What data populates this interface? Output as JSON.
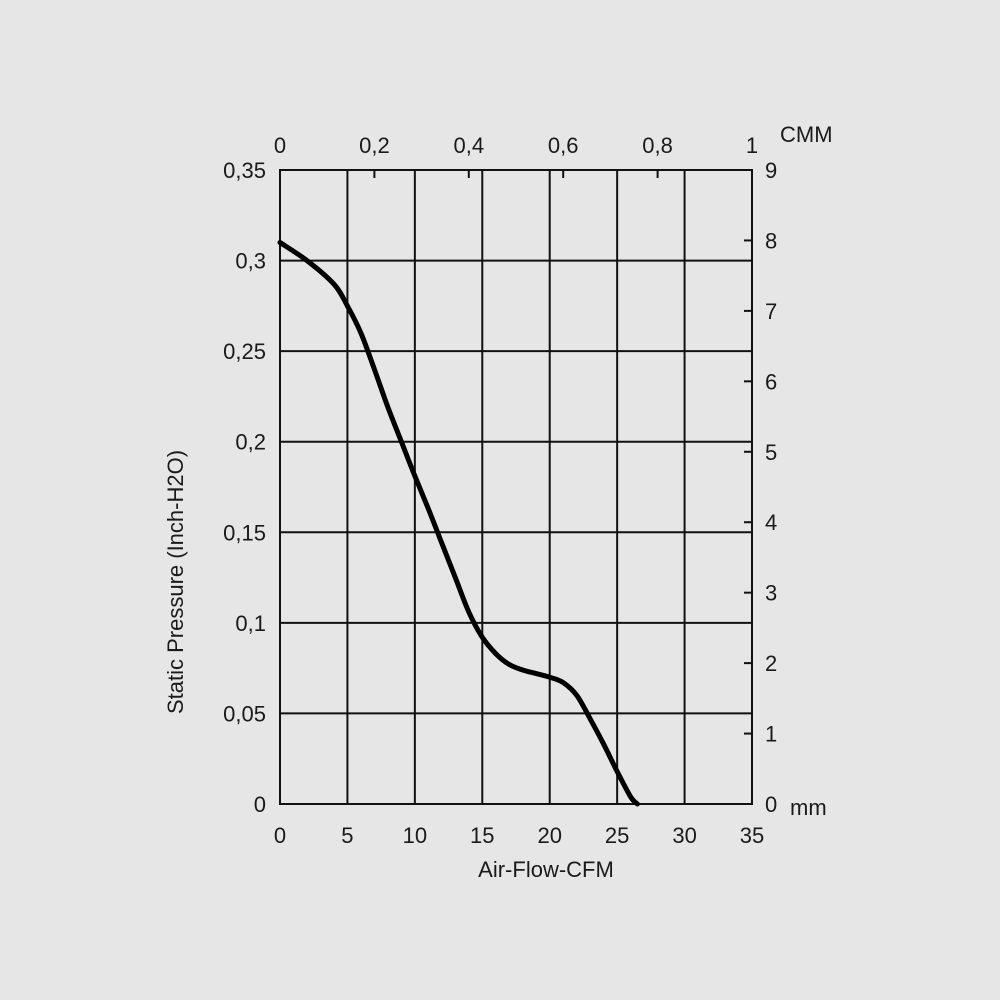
{
  "chart_data": {
    "type": "line",
    "xlabel": "Air-Flow-CFM",
    "ylabel": "Static Pressure (Inch-H2O)",
    "xlim": [
      0,
      35
    ],
    "ylim": [
      0,
      0.35
    ],
    "x_ticks": [
      "0",
      "5",
      "10",
      "15",
      "20",
      "25",
      "30",
      "35"
    ],
    "y_ticks": [
      "0",
      "0,05",
      "0,1",
      "0,15",
      "0,2",
      "0,25",
      "0,3",
      "0,35"
    ],
    "top_axis": {
      "unit": "CMM",
      "range": [
        0,
        1
      ],
      "ticks": [
        "0",
        "0,2",
        "0,4",
        "0,6",
        "0,8",
        "1"
      ]
    },
    "right_axis": {
      "unit": "mm",
      "range": [
        0,
        9
      ],
      "ticks": [
        "0",
        "1",
        "2",
        "3",
        "4",
        "5",
        "6",
        "7",
        "8",
        "9"
      ]
    },
    "grid": true,
    "series": [
      {
        "x": [
          0,
          2,
          4,
          5,
          6,
          7,
          8,
          9,
          10,
          11,
          12,
          13,
          14,
          15,
          16,
          17,
          18,
          19,
          20,
          21,
          22,
          23,
          24,
          25,
          26,
          26.5
        ],
        "y": [
          0.31,
          0.3,
          0.287,
          0.275,
          0.26,
          0.24,
          0.219,
          0.2,
          0.181,
          0.163,
          0.144,
          0.125,
          0.106,
          0.092,
          0.083,
          0.077,
          0.074,
          0.072,
          0.07,
          0.067,
          0.06,
          0.047,
          0.033,
          0.018,
          0.004,
          0
        ]
      }
    ]
  }
}
